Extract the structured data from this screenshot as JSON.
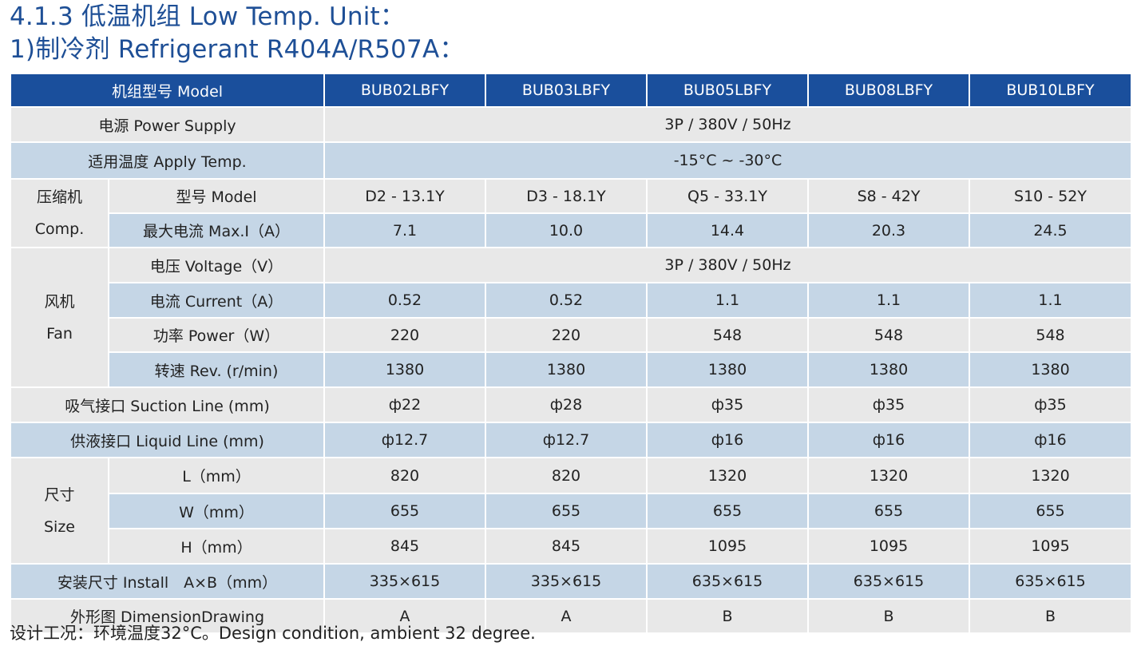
{
  "title": {
    "line1": "4.1.3 低温机组 Low Temp. Unit：",
    "line2": "1)制冷剂 Refrigerant R404A/R507A："
  },
  "table": {
    "header": {
      "label": "机组型号 Model",
      "models": [
        "BUB02LBFY",
        "BUB03LBFY",
        "BUB05LBFY",
        "BUB08LBFY",
        "BUB10LBFY"
      ]
    },
    "power_supply": {
      "label": "电源 Power Supply",
      "value": "3P / 380V / 50Hz"
    },
    "apply_temp": {
      "label": "适用温度 Apply Temp.",
      "value": "-15°C ~ -30°C"
    },
    "comp": {
      "group_cn": "压缩机",
      "group_en": "Comp.",
      "model": {
        "label": "型号 Model",
        "values": [
          "D2 - 13.1Y",
          "D3 - 18.1Y",
          "Q5 - 33.1Y",
          "S8 - 42Y",
          "S10 - 52Y"
        ]
      },
      "max_current": {
        "label": "最大电流 Max.I（A）",
        "values": [
          "7.1",
          "10.0",
          "14.4",
          "20.3",
          "24.5"
        ]
      }
    },
    "fan": {
      "group_cn": "风机",
      "group_en": "Fan",
      "voltage": {
        "label": "电压 Voltage（V）",
        "value": "3P / 380V / 50Hz"
      },
      "current": {
        "label": "电流 Current（A）",
        "values": [
          "0.52",
          "0.52",
          "1.1",
          "1.1",
          "1.1"
        ]
      },
      "power": {
        "label": "功率 Power（W）",
        "values": [
          "220",
          "220",
          "548",
          "548",
          "548"
        ]
      },
      "rev": {
        "label": "转速 Rev. (r/min)",
        "values": [
          "1380",
          "1380",
          "1380",
          "1380",
          "1380"
        ]
      }
    },
    "suction": {
      "label": "吸气接口 Suction Line (mm)",
      "values": [
        "ф22",
        "ф28",
        "ф35",
        "ф35",
        "ф35"
      ]
    },
    "liquid": {
      "label": "供液接口 Liquid Line (mm)",
      "values": [
        "ф12.7",
        "ф12.7",
        "ф16",
        "ф16",
        "ф16"
      ]
    },
    "size": {
      "group_cn": "尺寸",
      "group_en": "Size",
      "L": {
        "label": "L（mm）",
        "values": [
          "820",
          "820",
          "1320",
          "1320",
          "1320"
        ]
      },
      "W": {
        "label": "W（mm）",
        "values": [
          "655",
          "655",
          "655",
          "655",
          "655"
        ]
      },
      "H": {
        "label": "H（mm）",
        "values": [
          "845",
          "845",
          "1095",
          "1095",
          "1095"
        ]
      }
    },
    "install": {
      "label": "安装尺寸 Install　A×B（mm）",
      "values": [
        "335×615",
        "335×615",
        "635×615",
        "635×615",
        "635×615"
      ]
    },
    "drawing": {
      "label": "外形图 DimensionDrawing",
      "values": [
        "A",
        "A",
        "B",
        "B",
        "B"
      ]
    }
  },
  "footnote": "设计工况：环境温度32°C。Design condition, ambient 32 degree.",
  "colors": {
    "header_bg": "#1a4f9c",
    "title_text": "#1e4f96",
    "row_light": "#e8e8e8",
    "row_blue": "#c5d6e6"
  }
}
